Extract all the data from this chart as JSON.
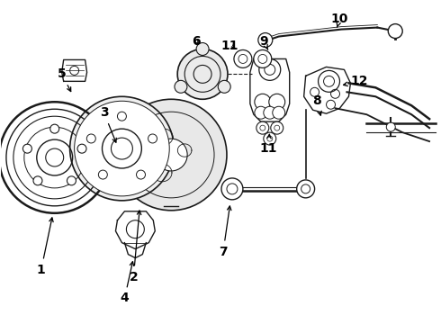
{
  "bg_color": "#ffffff",
  "fig_width": 4.9,
  "fig_height": 3.6,
  "dpi": 100,
  "lc": "#1a1a1a",
  "label_color": "#000000",
  "label_fontsize": 10,
  "label_fontweight": "bold",
  "arrow_color": "#000000"
}
